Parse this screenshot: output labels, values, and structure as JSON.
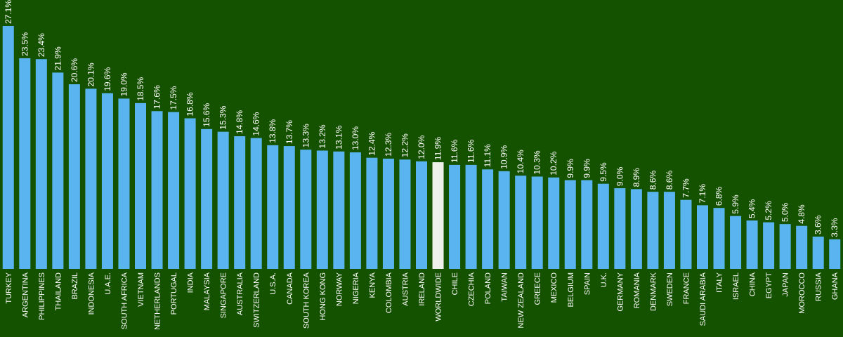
{
  "colors": {
    "background": "#155200",
    "bar": "#5ab4f0",
    "highlight_bar": "#eef0ea",
    "text": "#ffffff"
  },
  "chart_data": {
    "type": "bar",
    "title": "",
    "xlabel": "",
    "ylabel": "",
    "ylim": [
      0,
      27.1
    ],
    "grid": false,
    "highlight_category": "WORLDWIDE",
    "categories": [
      "TURKEY",
      "ARGENTINA",
      "PHILIPPINES",
      "THAILAND",
      "BRAZIL",
      "INDONESIA",
      "U.A.E.",
      "SOUTH AFRICA",
      "VIETNAM",
      "NETHERLANDS",
      "PORTUGAL",
      "INDIA",
      "MALAYSIA",
      "SINGAPORE",
      "AUSTRALIA",
      "SWITZERLAND",
      "U.S.A.",
      "CANADA",
      "SOUTH KOREA",
      "HONG KONG",
      "NORWAY",
      "NIGERIA",
      "KENYA",
      "COLOMBIA",
      "AUSTRIA",
      "IRELAND",
      "WORLDWIDE",
      "CHILE",
      "CZECHIA",
      "POLAND",
      "TAIWAN",
      "NEW ZEALAND",
      "GREECE",
      "MEXICO",
      "BELGIUM",
      "SPAIN",
      "U.K.",
      "GERMANY",
      "ROMANIA",
      "DENMARK",
      "SWEDEN",
      "FRANCE",
      "SAUDI ARABIA",
      "ITALY",
      "ISRAEL",
      "CHINA",
      "EGYPT",
      "JAPAN",
      "MOROCCO",
      "RUSSIA",
      "GHANA"
    ],
    "values": [
      27.1,
      23.5,
      23.4,
      21.9,
      20.6,
      20.1,
      19.6,
      19.0,
      18.5,
      17.6,
      17.5,
      16.8,
      15.6,
      15.3,
      14.8,
      14.6,
      13.8,
      13.7,
      13.3,
      13.2,
      13.1,
      13.0,
      12.4,
      12.3,
      12.2,
      12.0,
      11.9,
      11.6,
      11.6,
      11.1,
      10.9,
      10.4,
      10.3,
      10.2,
      9.9,
      9.9,
      9.5,
      9.0,
      8.9,
      8.6,
      8.6,
      7.7,
      7.1,
      6.8,
      5.9,
      5.4,
      5.2,
      5.0,
      4.8,
      3.6,
      3.3
    ],
    "value_labels": [
      "27.1%",
      "23.5%",
      "23.4%",
      "21.9%",
      "20.6%",
      "20.1%",
      "19.6%",
      "19.0%",
      "18.5%",
      "17.6%",
      "17.5%",
      "16.8%",
      "15.6%",
      "15.3%",
      "14.8%",
      "14.6%",
      "13.8%",
      "13.7%",
      "13.3%",
      "13.2%",
      "13.1%",
      "13.0%",
      "12.4%",
      "12.3%",
      "12.2%",
      "12.0%",
      "11.9%",
      "11.6%",
      "11.6%",
      "11.1%",
      "10.9%",
      "10.4%",
      "10.3%",
      "10.2%",
      "9.9%",
      "9.9%",
      "9.5%",
      "9.0%",
      "8.9%",
      "8.6%",
      "8.6%",
      "7.7%",
      "7.1%",
      "6.8%",
      "5.9%",
      "5.4%",
      "5.2%",
      "5.0%",
      "4.8%",
      "3.6%",
      "3.3%"
    ]
  }
}
